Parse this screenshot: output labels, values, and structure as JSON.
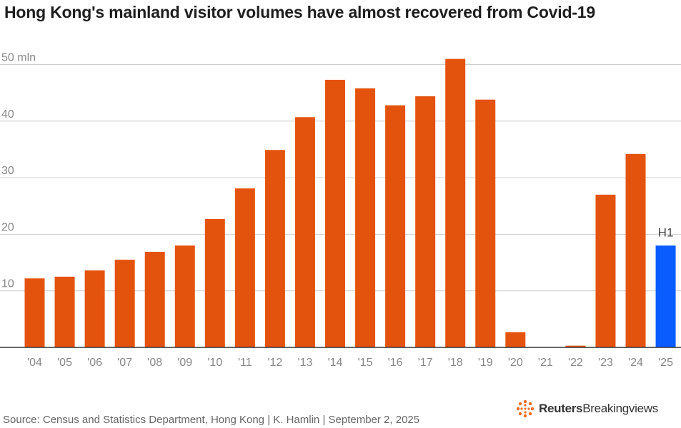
{
  "title": "Hong Kong's mainland visitor volumes have almost recovered from Covid-19",
  "source": "Source: Census and Statistics Department, Hong Kong | K. Hamlin | September 2, 2025",
  "brand": {
    "name": "Reuters",
    "product": "Breakingviews",
    "icon": "reuters-dot-logo-icon"
  },
  "colors": {
    "bar": "#e4530d",
    "highlight": "#0a5cff",
    "grid": "#cccccc",
    "axis": "#333333",
    "tick_text": "#888888"
  },
  "chart_data": {
    "type": "bar",
    "categories": [
      "'04",
      "'05",
      "'06",
      "'07",
      "'08",
      "'09",
      "'10",
      "'11",
      "'12",
      "'13",
      "'14",
      "'15",
      "'16",
      "'17",
      "'18",
      "'19",
      "'20",
      "'21",
      "'22",
      "'23",
      "'24",
      "'25"
    ],
    "values": [
      12.2,
      12.5,
      13.6,
      15.5,
      16.9,
      18.0,
      22.7,
      28.1,
      34.9,
      40.7,
      47.3,
      45.8,
      42.8,
      44.4,
      51.0,
      43.8,
      2.7,
      0.0,
      0.3,
      27.0,
      34.2,
      18.0
    ],
    "highlight_index": 21,
    "annotation": {
      "index": 21,
      "text": "H1"
    },
    "yticks": [
      10,
      20,
      30,
      40,
      50
    ],
    "ytick_labels": [
      "10",
      "20",
      "30",
      "40",
      "50 mln"
    ],
    "ylim": [
      0,
      52
    ],
    "xlabel": "",
    "ylabel": "",
    "grid": true
  }
}
